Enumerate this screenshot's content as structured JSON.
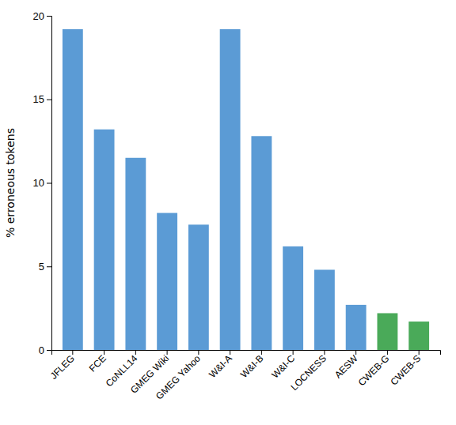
{
  "chart_data": {
    "type": "bar",
    "categories": [
      "JFLEG",
      "FCE",
      "CoNLL14",
      "GMEG Wiki",
      "GMEG Yahoo",
      "W&I-A",
      "W&I-B",
      "W&I-C",
      "LOCNESS",
      "AESW",
      "CWEB-G",
      "CWEB-S"
    ],
    "values": [
      19.2,
      13.2,
      11.5,
      8.2,
      7.5,
      19.2,
      12.8,
      6.2,
      4.8,
      2.7,
      2.2,
      1.7
    ],
    "colors": [
      "#5b9bd5",
      "#5b9bd5",
      "#5b9bd5",
      "#5b9bd5",
      "#5b9bd5",
      "#5b9bd5",
      "#5b9bd5",
      "#5b9bd5",
      "#5b9bd5",
      "#5b9bd5",
      "#4aaa59",
      "#4aaa59"
    ],
    "ylabel": "% erroneous tokens",
    "ylim": [
      0,
      20
    ],
    "yticks": [
      0,
      5,
      10,
      15,
      20
    ],
    "grid": false
  }
}
